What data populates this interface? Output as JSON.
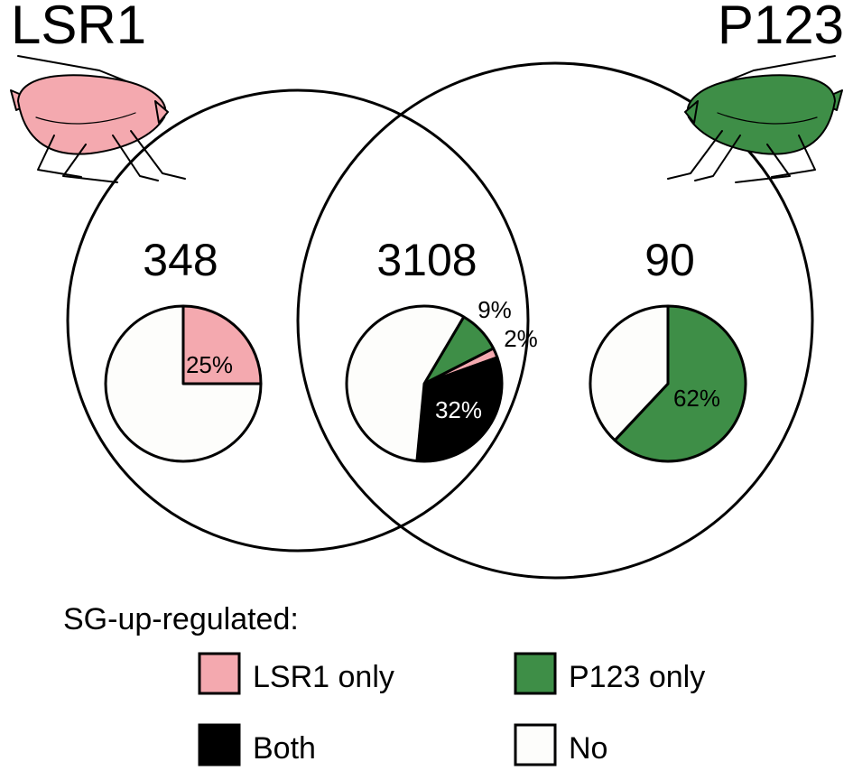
{
  "titles": {
    "left": "LSR1",
    "right": "P123"
  },
  "counts": {
    "left_only": "348",
    "overlap": "3108",
    "right_only": "90"
  },
  "colors": {
    "lsr1": "#F4A9AF",
    "p123": "#3E8E47",
    "both": "#000000",
    "no": "#FDFDFB"
  },
  "icons": {
    "left_aphid": "aphid-pink-icon",
    "right_aphid": "aphid-green-icon"
  },
  "chart_data": [
    {
      "type": "pie",
      "region": "LSR1 only (348)",
      "slices": [
        {
          "name": "LSR1 only",
          "value": 25,
          "label": "25%"
        },
        {
          "name": "No",
          "value": 75,
          "label": ""
        }
      ]
    },
    {
      "type": "pie",
      "region": "Both (3108)",
      "slices": [
        {
          "name": "P123 only",
          "value": 9,
          "label": "9%"
        },
        {
          "name": "LSR1 only",
          "value": 2,
          "label": "2%"
        },
        {
          "name": "Both",
          "value": 32,
          "label": "32%"
        },
        {
          "name": "No",
          "value": 57,
          "label": ""
        }
      ]
    },
    {
      "type": "pie",
      "region": "P123 only (90)",
      "slices": [
        {
          "name": "P123 only",
          "value": 62,
          "label": "62%"
        },
        {
          "name": "No",
          "value": 38,
          "label": ""
        }
      ]
    }
  ],
  "legend": {
    "title": "SG-up-regulated:",
    "items": [
      {
        "label": "LSR1 only",
        "color": "#F4A9AF"
      },
      {
        "label": "P123 only",
        "color": "#3E8E47"
      },
      {
        "label": "Both",
        "color": "#000000"
      },
      {
        "label": "No",
        "color": "#FDFDFB"
      }
    ]
  }
}
